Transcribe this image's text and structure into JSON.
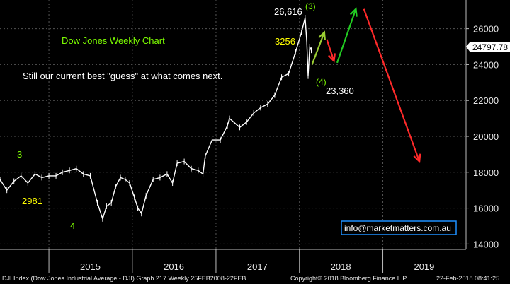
{
  "chart_data": {
    "type": "line",
    "title": "Dow Jones Weekly Chart",
    "subtitle": "Still our current best \"guess\" at what comes next.",
    "x_range": [
      "2014-06-01",
      "2019-12-31"
    ],
    "ylim": [
      13700,
      27600
    ],
    "y_ticks": [
      14000,
      16000,
      18000,
      20000,
      22000,
      24000,
      26000
    ],
    "y_tick_labels": [
      "14000",
      "16000",
      "18000",
      "20000",
      "22000",
      "24000",
      "26000"
    ],
    "x_tick_labels": [
      {
        "label": "2015",
        "date": "2015-07-01"
      },
      {
        "label": "2016",
        "date": "2016-07-01"
      },
      {
        "label": "2017",
        "date": "2017-07-01"
      },
      {
        "label": "2018",
        "date": "2018-07-01"
      },
      {
        "label": "2019",
        "date": "2019-07-01"
      }
    ],
    "year_boundaries": [
      "2015-01-01",
      "2016-01-01",
      "2017-01-01",
      "2018-01-01",
      "2019-01-01"
    ],
    "last_price": "24797.78",
    "grid": true,
    "series": [
      {
        "points": [
          [
            "2014-06-01",
            17600
          ],
          [
            "2014-07-01",
            17000
          ],
          [
            "2014-08-01",
            17500
          ],
          [
            "2014-09-01",
            17800
          ],
          [
            "2014-10-01",
            17400
          ],
          [
            "2014-11-01",
            17900
          ],
          [
            "2014-12-01",
            17700
          ],
          [
            "2015-01-01",
            17800
          ],
          [
            "2015-02-01",
            17800
          ],
          [
            "2015-03-01",
            18000
          ],
          [
            "2015-04-01",
            18100
          ],
          [
            "2015-05-01",
            18200
          ],
          [
            "2015-06-01",
            17900
          ],
          [
            "2015-07-01",
            17800
          ],
          [
            "2015-08-01",
            16300
          ],
          [
            "2015-08-24",
            15400
          ],
          [
            "2015-09-10",
            16100
          ],
          [
            "2015-10-01",
            16300
          ],
          [
            "2015-10-20",
            17200
          ],
          [
            "2015-11-10",
            17700
          ],
          [
            "2015-12-01",
            17600
          ],
          [
            "2015-12-20",
            17400
          ],
          [
            "2016-01-10",
            16600
          ],
          [
            "2016-01-25",
            16000
          ],
          [
            "2016-02-10",
            15700
          ],
          [
            "2016-03-01",
            16700
          ],
          [
            "2016-04-01",
            17600
          ],
          [
            "2016-05-01",
            17700
          ],
          [
            "2016-06-01",
            17900
          ],
          [
            "2016-06-25",
            17400
          ],
          [
            "2016-07-15",
            18500
          ],
          [
            "2016-08-15",
            18600
          ],
          [
            "2016-09-15",
            18200
          ],
          [
            "2016-10-15",
            18100
          ],
          [
            "2016-11-05",
            17900
          ],
          [
            "2016-11-15",
            18900
          ],
          [
            "2016-12-15",
            19800
          ],
          [
            "2017-01-20",
            19800
          ],
          [
            "2017-02-20",
            20600
          ],
          [
            "2017-03-01",
            21000
          ],
          [
            "2017-04-15",
            20500
          ],
          [
            "2017-05-15",
            20800
          ],
          [
            "2017-06-15",
            21300
          ],
          [
            "2017-07-15",
            21600
          ],
          [
            "2017-08-15",
            21800
          ],
          [
            "2017-09-15",
            22300
          ],
          [
            "2017-10-15",
            23300
          ],
          [
            "2017-11-15",
            23500
          ],
          [
            "2017-12-15",
            24700
          ],
          [
            "2018-01-10",
            25800
          ],
          [
            "2018-01-26",
            26616
          ],
          [
            "2018-02-02",
            25300
          ],
          [
            "2018-02-08",
            23360
          ],
          [
            "2018-02-15",
            25000
          ],
          [
            "2018-02-22",
            24797.78
          ]
        ]
      }
    ],
    "annotations": {
      "high_label": "26,616",
      "low_label": "23,360",
      "drop_label": "3256",
      "wave_3_top": "(3)",
      "wave_4_bottom": "(4)",
      "wave_3_left": "3",
      "wave_4_left": "4",
      "low_2015_label": "2981"
    },
    "forecast_arrows": [
      {
        "color": "#9acd32",
        "from": [
          "2018-02-25",
          24000
        ],
        "to": [
          "2018-04-20",
          25800
        ]
      },
      {
        "color": "#ff2a2a",
        "from": [
          "2018-05-01",
          25400
        ],
        "to": [
          "2018-06-01",
          24200
        ]
      },
      {
        "color": "#22cc22",
        "from": [
          "2018-06-15",
          24100
        ],
        "to": [
          "2018-09-05",
          27100
        ]
      },
      {
        "color": "#ff2a2a",
        "from": [
          "2018-10-10",
          27100
        ],
        "to": [
          "2019-06-10",
          18600
        ]
      }
    ],
    "colors": {
      "background": "#000000",
      "price": "#ffffff",
      "grid": "#555555",
      "green_text": "#7CFC00",
      "yellow_text": "#ffff00"
    }
  },
  "contact": "info@marketmatters.com.au",
  "footer": {
    "left": "DJI Index (Dow Jones Industrial Average - DJI) Graph 217  Weekly 25FEB2008-22FEB",
    "center": "Copyright© 2018 Bloomberg Finance L.P.",
    "right": "22-Feb-2018 08:41:25"
  }
}
